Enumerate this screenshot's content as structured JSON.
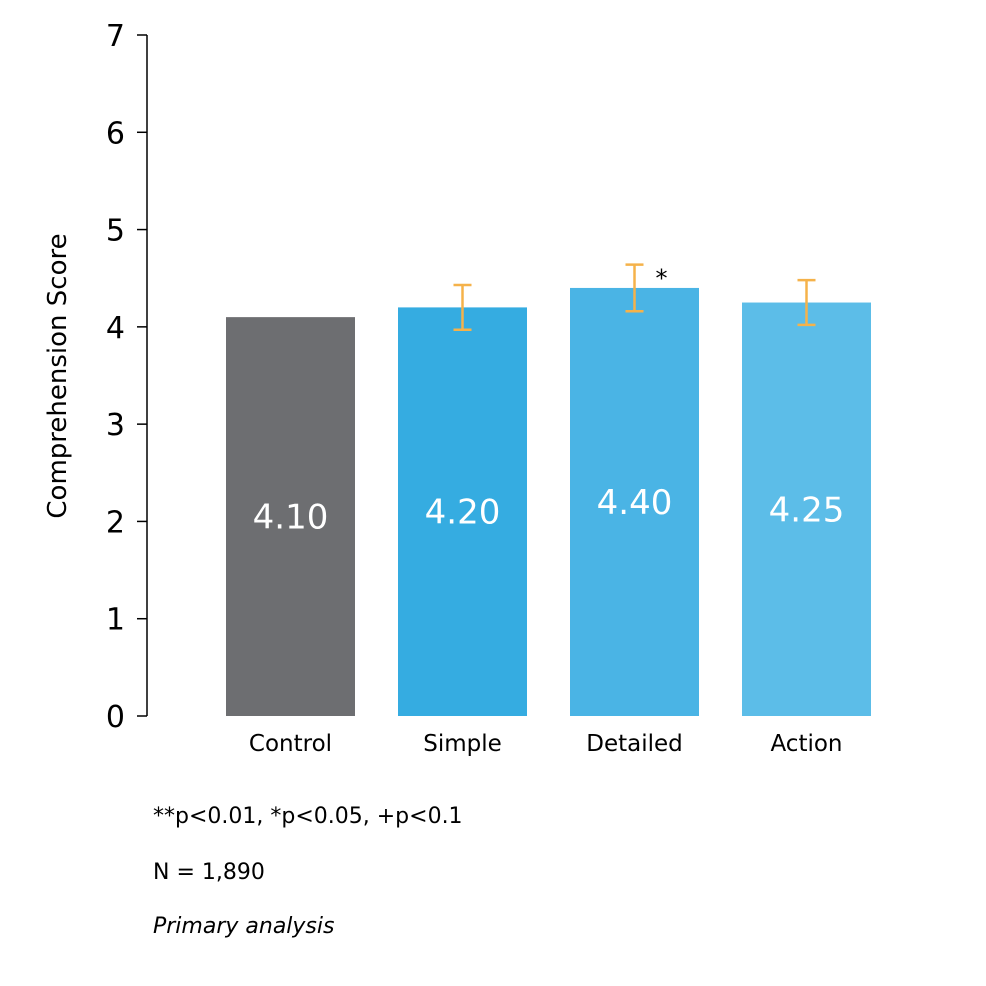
{
  "chart_data": {
    "type": "bar",
    "categories": [
      "Control",
      "Simple",
      "Detailed",
      "Action"
    ],
    "values": [
      4.1,
      4.2,
      4.4,
      4.25
    ],
    "value_labels": [
      "4.10",
      "4.20",
      "4.40",
      "4.25"
    ],
    "error_bars": [
      null,
      [
        3.97,
        4.43
      ],
      [
        4.16,
        4.64
      ],
      [
        4.02,
        4.48
      ]
    ],
    "significance": [
      "",
      "",
      "*",
      ""
    ],
    "bar_colors": [
      "#6d6e71",
      "#35ace1",
      "#4ab4e5",
      "#5cbde8"
    ],
    "error_bar_color": "#f5b24a",
    "ylabel": "Comprehension Score",
    "xlabel": "",
    "ylim": [
      0,
      7
    ],
    "yticks": [
      0,
      1,
      2,
      3,
      4,
      5,
      6,
      7
    ],
    "grid": false,
    "legend": "none"
  },
  "footnotes": {
    "significance": "**p<0.01, *p<0.05, +p<0.1",
    "sample_size": "N = 1,890",
    "analysis": "Primary analysis"
  }
}
